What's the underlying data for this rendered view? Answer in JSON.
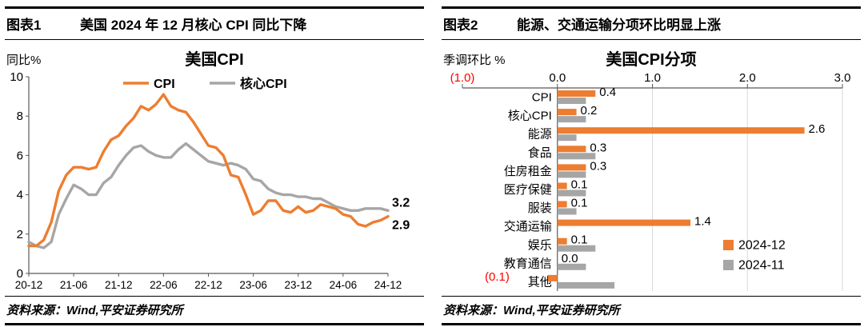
{
  "colors": {
    "orange": "#ED7D31",
    "gray": "#A6A6A6",
    "red": "#FF0000",
    "axis": "#595959",
    "grid": "#D9D9D9"
  },
  "left_panel": {
    "header": {
      "tag": "图表1",
      "title": "美国 2024 年 12 月核心 CPI 同比下降"
    },
    "source": "资料来源：Wind,平安证券研究所"
  },
  "right_panel": {
    "header": {
      "tag": "图表2",
      "title": "能源、交通运输分项环比明显上涨"
    },
    "source": "资料来源：Wind,平安证券研究所"
  },
  "chart_data": [
    {
      "type": "line",
      "title": "美国CPI",
      "ylabel": "同比%",
      "ylim": [
        0,
        10
      ],
      "yticks": [
        0,
        2,
        4,
        6,
        8,
        10
      ],
      "x_tick_labels": [
        "20-12",
        "21-06",
        "21-12",
        "22-06",
        "22-12",
        "23-06",
        "23-12",
        "24-06",
        "24-12"
      ],
      "legend_position": "top",
      "grid": false,
      "series": [
        {
          "name": "CPI",
          "color_key": "orange",
          "end_label": "2.9",
          "values": [
            1.4,
            1.4,
            1.7,
            2.6,
            4.2,
            5.0,
            5.4,
            5.4,
            5.3,
            5.4,
            6.2,
            6.8,
            7.0,
            7.5,
            7.9,
            8.5,
            8.3,
            8.6,
            9.1,
            8.5,
            8.3,
            8.2,
            7.7,
            7.1,
            6.5,
            6.4,
            6.0,
            5.0,
            4.9,
            4.0,
            3.0,
            3.2,
            3.7,
            3.7,
            3.2,
            3.1,
            3.4,
            3.1,
            3.2,
            3.5,
            3.4,
            3.3,
            3.0,
            2.9,
            2.5,
            2.4,
            2.6,
            2.7,
            2.9
          ]
        },
        {
          "name": "核心CPI",
          "color_key": "gray",
          "end_label": "3.2",
          "values": [
            1.6,
            1.4,
            1.3,
            1.6,
            3.0,
            3.8,
            4.5,
            4.3,
            4.0,
            4.0,
            4.6,
            4.9,
            5.5,
            6.0,
            6.4,
            6.5,
            6.2,
            6.0,
            5.9,
            5.9,
            6.3,
            6.6,
            6.3,
            6.0,
            5.7,
            5.6,
            5.5,
            5.6,
            5.5,
            5.3,
            4.8,
            4.7,
            4.3,
            4.1,
            4.0,
            4.0,
            3.9,
            3.9,
            3.8,
            3.8,
            3.6,
            3.4,
            3.3,
            3.2,
            3.2,
            3.3,
            3.3,
            3.3,
            3.2
          ]
        }
      ]
    },
    {
      "type": "bar",
      "orientation": "horizontal",
      "title": "美国CPI分项",
      "axis_label": "季调环比 %",
      "xlim": [
        -1.0,
        3.0
      ],
      "xticks": [
        -1.0,
        0.0,
        1.0,
        2.0,
        3.0
      ],
      "categories": [
        "CPI",
        "核心CPI",
        "能源",
        "食品",
        "住房租金",
        "医疗保健",
        "服装",
        "交通运输",
        "娱乐",
        "教育通信",
        "其他"
      ],
      "legend_position": "bottom-right",
      "series": [
        {
          "name": "2024-12",
          "color_key": "orange",
          "show_labels": true,
          "values": [
            0.4,
            0.2,
            2.6,
            0.3,
            0.3,
            0.1,
            0.1,
            1.4,
            0.1,
            0.0,
            -0.1
          ]
        },
        {
          "name": "2024-11",
          "color_key": "gray",
          "show_labels": false,
          "values": [
            0.3,
            0.3,
            0.2,
            0.4,
            0.3,
            0.3,
            0.2,
            0.0,
            0.4,
            0.3,
            0.6
          ]
        }
      ]
    }
  ]
}
